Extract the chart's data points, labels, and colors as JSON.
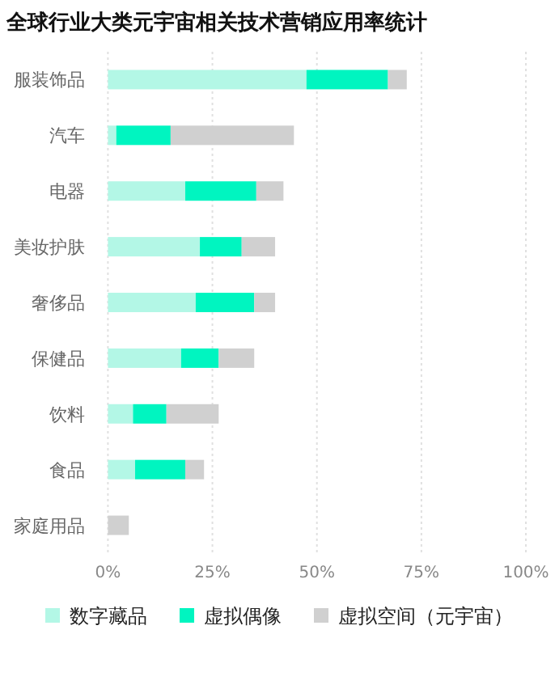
{
  "chart_data": {
    "type": "bar",
    "orientation": "horizontal",
    "stacked": true,
    "title": "全球行业大类元宇宙相关技术营销应用率统计",
    "categories": [
      "服装饰品",
      "汽车",
      "电器",
      "美妆护肤",
      "奢侈品",
      "保健品",
      "饮料",
      "食品",
      "家庭用品"
    ],
    "series": [
      {
        "name": "数字藏品",
        "color": "#b3f7e6",
        "values": [
          47.5,
          2,
          18.5,
          22,
          21,
          17.5,
          6,
          6.5,
          0
        ]
      },
      {
        "name": "虚拟偶像",
        "color": "#00f5c0",
        "values": [
          19.5,
          13,
          17,
          10,
          14,
          9,
          8,
          12,
          0
        ]
      },
      {
        "name": "虚拟空间（元宇宙）",
        "color": "#d0d0d0",
        "values": [
          4.5,
          29.5,
          6.5,
          8,
          5,
          8.5,
          12.5,
          4.5,
          5
        ]
      }
    ],
    "xlim": [
      0,
      100
    ],
    "xticks": [
      {
        "value": 0,
        "label": "0%"
      },
      {
        "value": 25,
        "label": "25%"
      },
      {
        "value": 50,
        "label": "50%"
      },
      {
        "value": 75,
        "label": "75%"
      },
      {
        "value": 100,
        "label": "100%"
      }
    ],
    "grid": "x",
    "legend": "bottom"
  }
}
